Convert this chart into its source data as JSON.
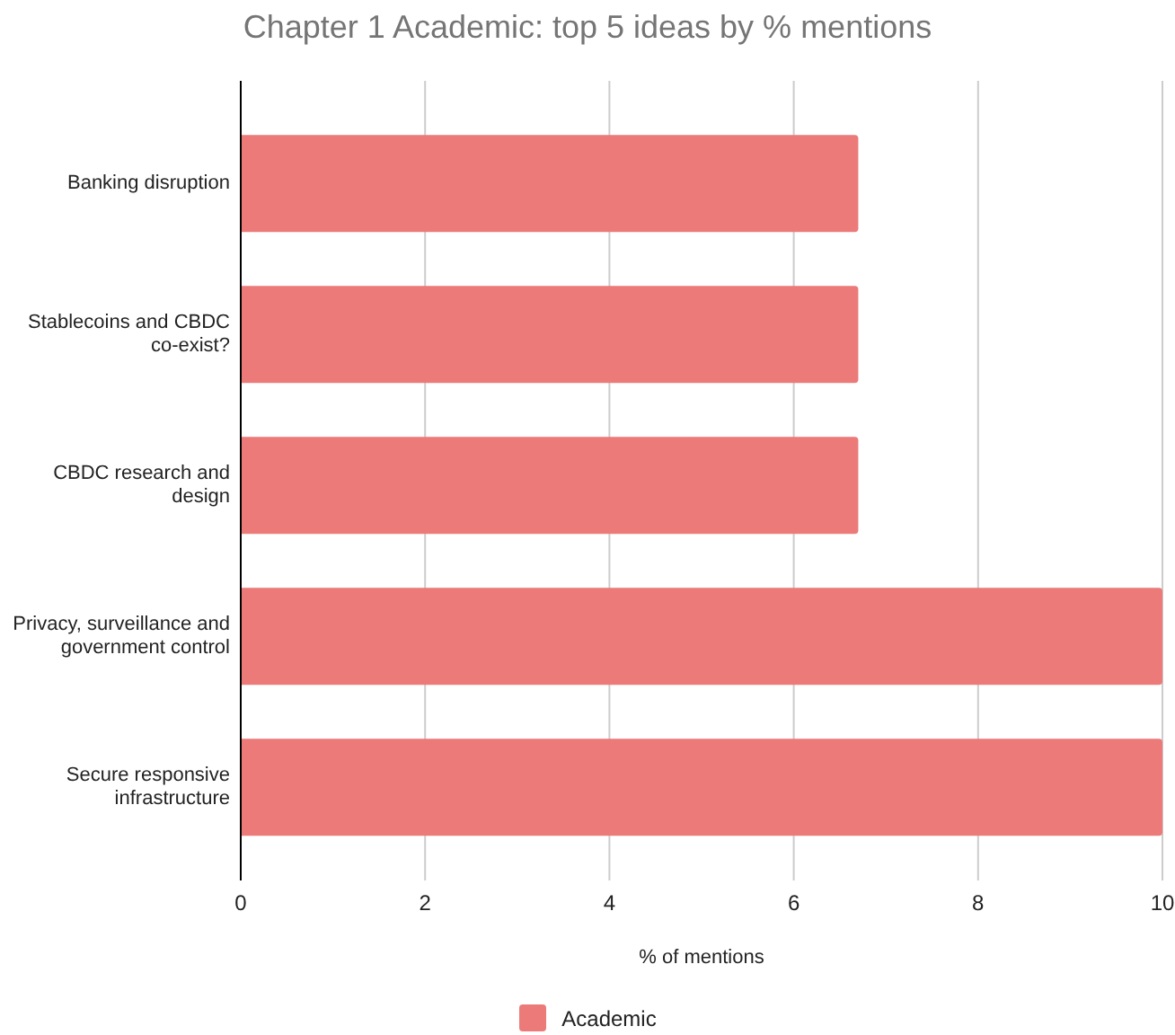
{
  "chart_data": {
    "type": "bar",
    "orientation": "horizontal",
    "title": "Chapter 1 Academic: top 5 ideas by % mentions",
    "xlabel": "% of mentions",
    "categories": [
      "Banking disruption",
      "Stablecoins and CBDC co-exist?",
      "CBDC research and design",
      "Privacy, surveillance and government control",
      "Secure responsive infrastructure"
    ],
    "series": [
      {
        "name": "Academic",
        "color": "#eb7a78",
        "values": [
          6.7,
          6.7,
          6.7,
          10,
          10
        ]
      }
    ],
    "xlim": [
      0,
      10
    ],
    "xticks": [
      0,
      2,
      4,
      6,
      8,
      10
    ],
    "grid": "x",
    "legend": "bottom"
  }
}
